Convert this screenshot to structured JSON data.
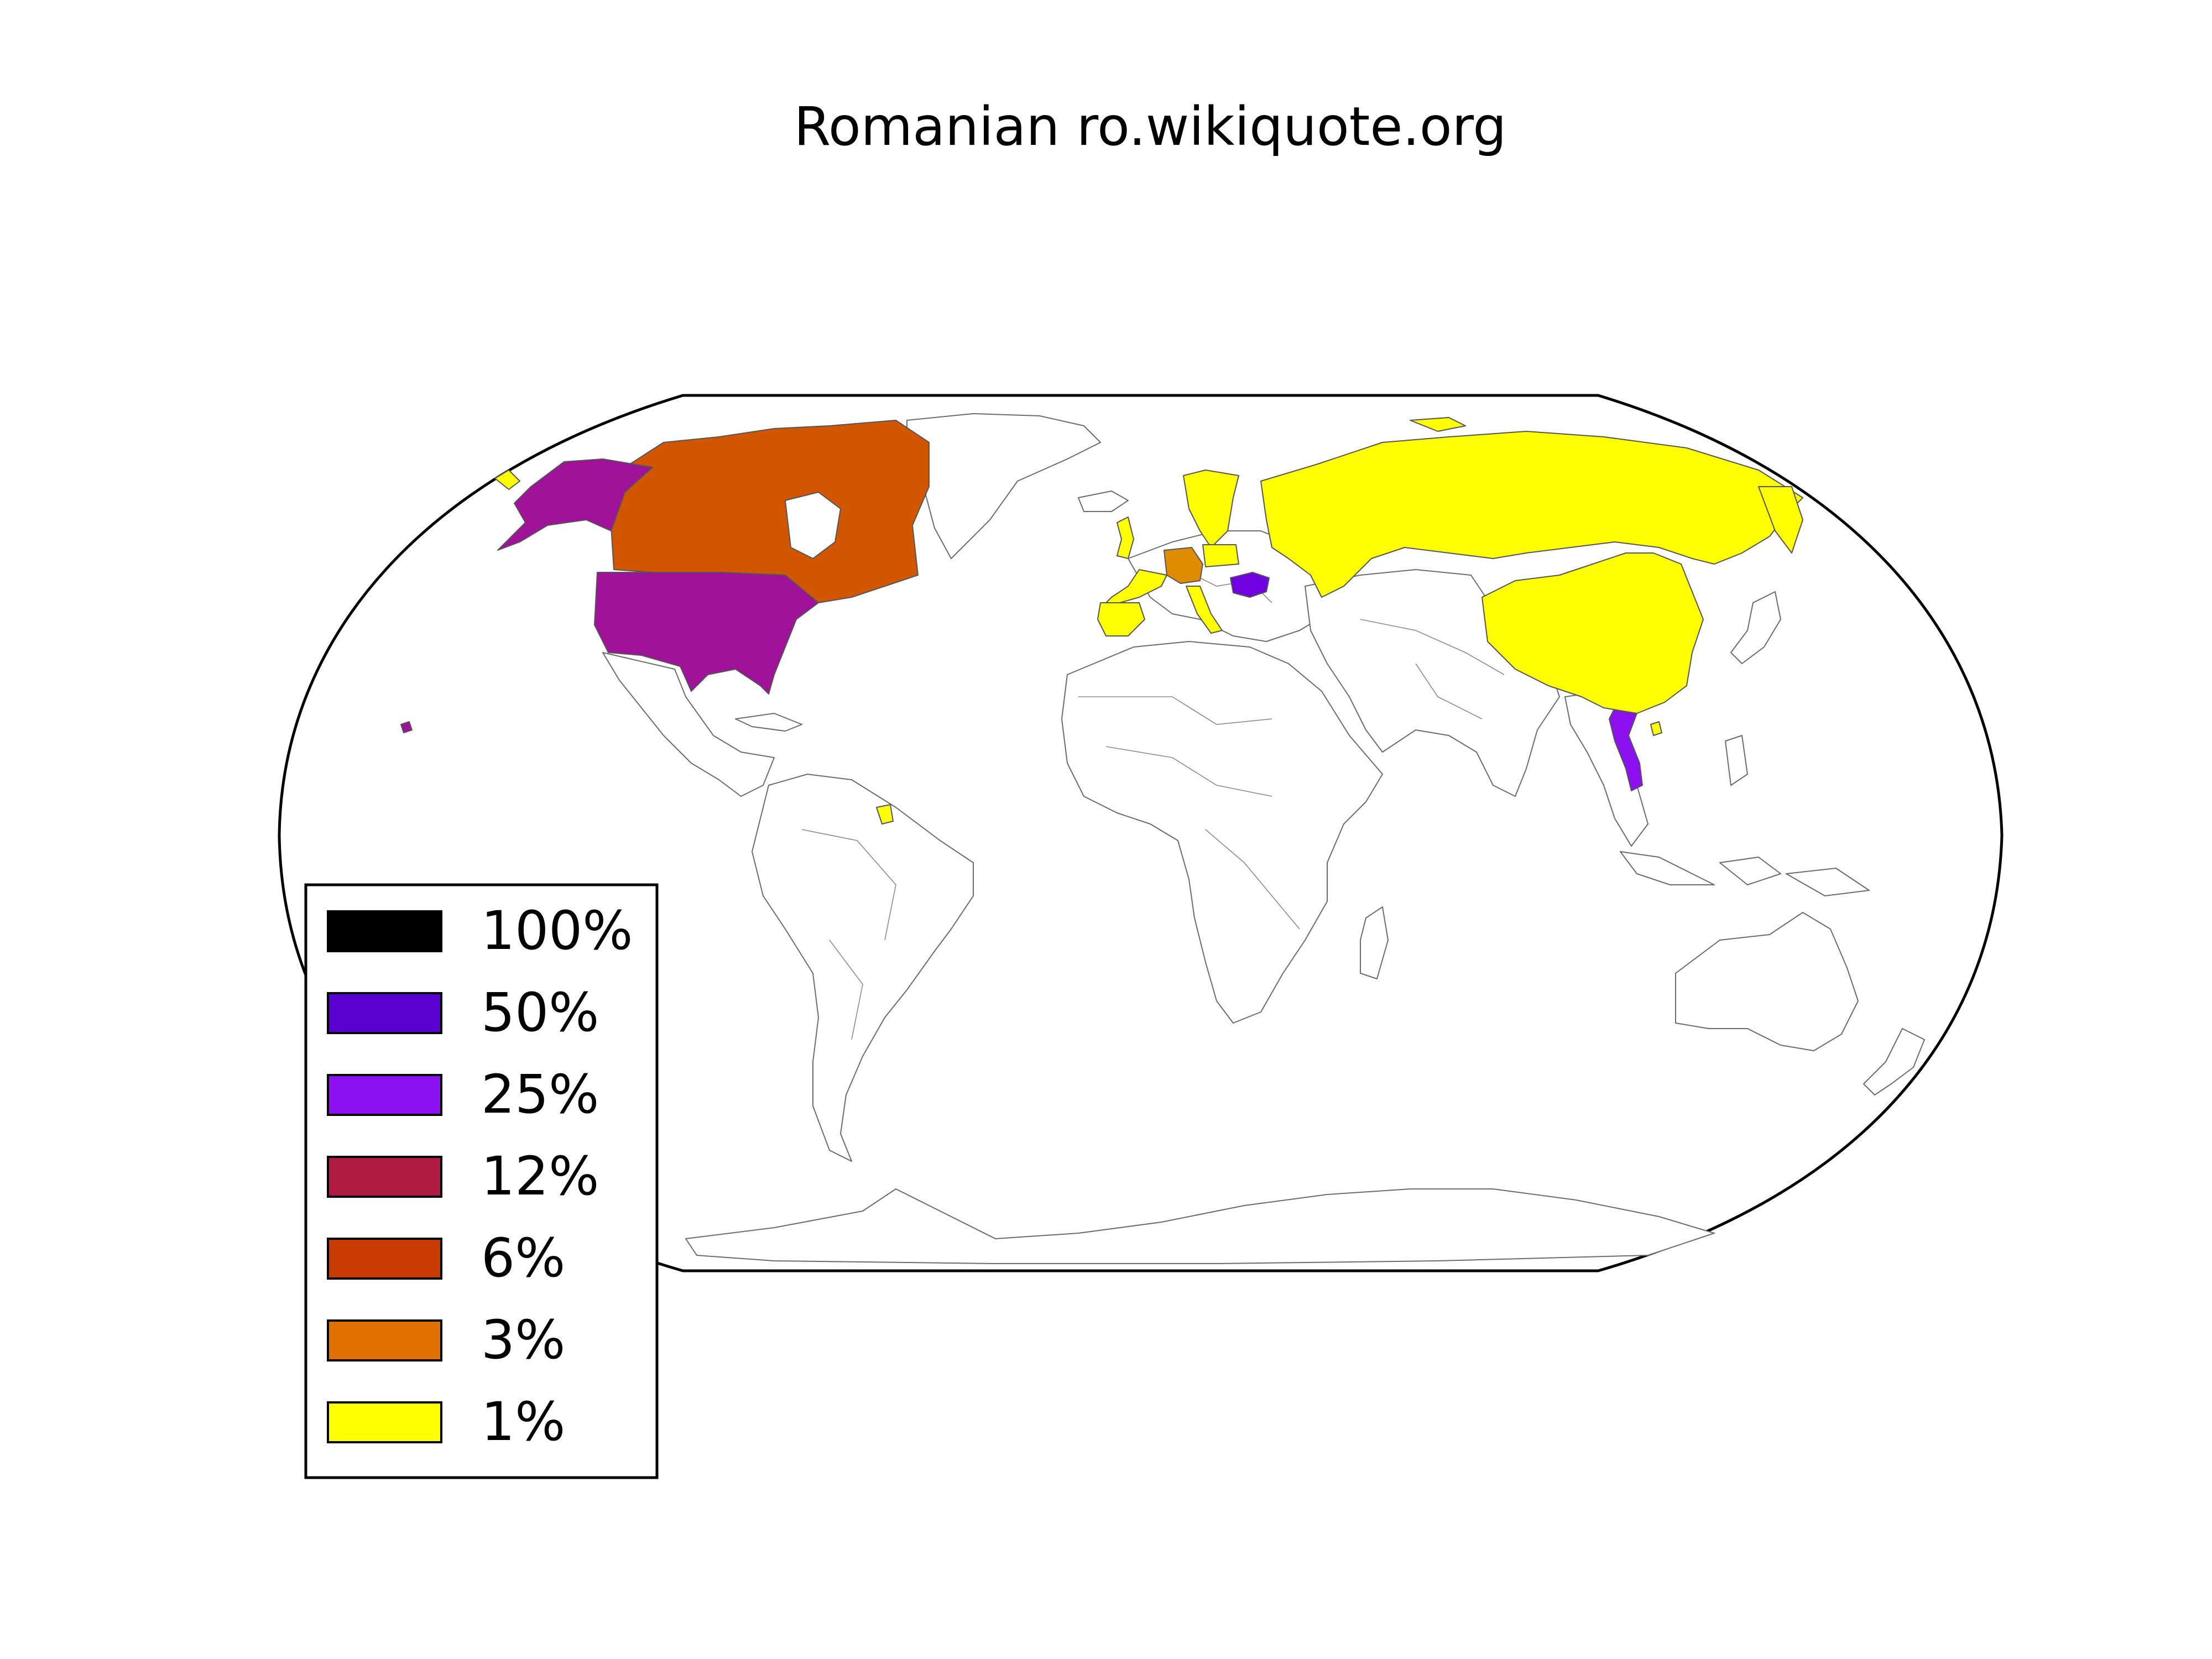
{
  "title": "Romanian ro.wikiquote.org",
  "legend": [
    {
      "label": "100%",
      "color": "#000000"
    },
    {
      "label": "50%",
      "color": "#5a00d0"
    },
    {
      "label": "25%",
      "color": "#8c10f0"
    },
    {
      "label": "12%",
      "color": "#b01a42"
    },
    {
      "label": "6%",
      "color": "#c83a00"
    },
    {
      "label": "3%",
      "color": "#e07000"
    },
    {
      "label": "1%",
      "color": "#ffff00"
    }
  ],
  "highlighted_regions": [
    {
      "name": "Romania",
      "color": "#7000e0"
    },
    {
      "name": "Vietnam",
      "color": "#8c10f0"
    },
    {
      "name": "United States",
      "color": "#a0129a"
    },
    {
      "name": "Canada",
      "color": "#d25600"
    },
    {
      "name": "Germany",
      "color": "#e08c00"
    },
    {
      "name": "Russia",
      "color": "#ffff00"
    },
    {
      "name": "China",
      "color": "#ffff00"
    }
  ]
}
